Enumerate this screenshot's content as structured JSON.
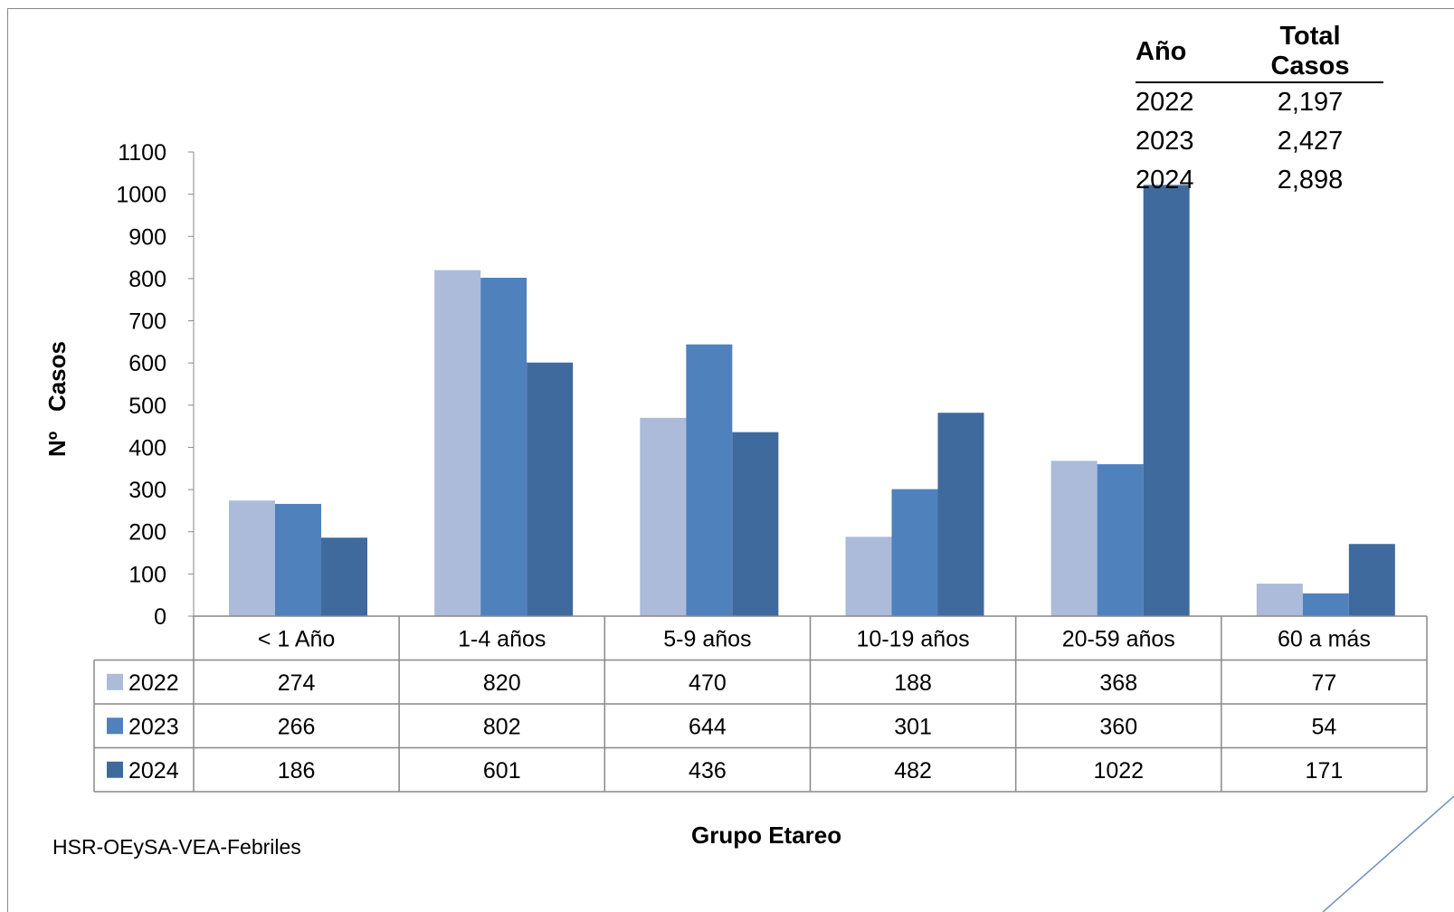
{
  "summary": {
    "header": {
      "year": "Año",
      "total": "Total Casos"
    },
    "rows": [
      {
        "year": "2022",
        "total": "2,197"
      },
      {
        "year": "2023",
        "total": "2,427"
      },
      {
        "year": "2024",
        "total": "2,898"
      }
    ]
  },
  "source_note": "HSR-OEySA-VEA-Febriles",
  "chart_data": {
    "type": "bar",
    "title": "",
    "xlabel": "Grupo Etareo",
    "ylabel": "Nº   Casos",
    "ylim": [
      0,
      1100
    ],
    "y_ticks": [
      0,
      100,
      200,
      300,
      400,
      500,
      600,
      700,
      800,
      900,
      1000,
      1100
    ],
    "categories": [
      "< 1 Año",
      "1-4 años",
      "5-9 años",
      "10-19 años",
      "20-59 años",
      "60 a más"
    ],
    "series": [
      {
        "name": "2022",
        "color": "#abbbd9",
        "values": [
          274,
          820,
          470,
          188,
          368,
          77
        ]
      },
      {
        "name": "2023",
        "color": "#4f81bd",
        "values": [
          266,
          802,
          644,
          301,
          360,
          54
        ]
      },
      {
        "name": "2024",
        "color": "#3f6a9d",
        "values": [
          186,
          601,
          436,
          482,
          1022,
          171
        ]
      }
    ],
    "grid": false,
    "legend": "data-table"
  }
}
